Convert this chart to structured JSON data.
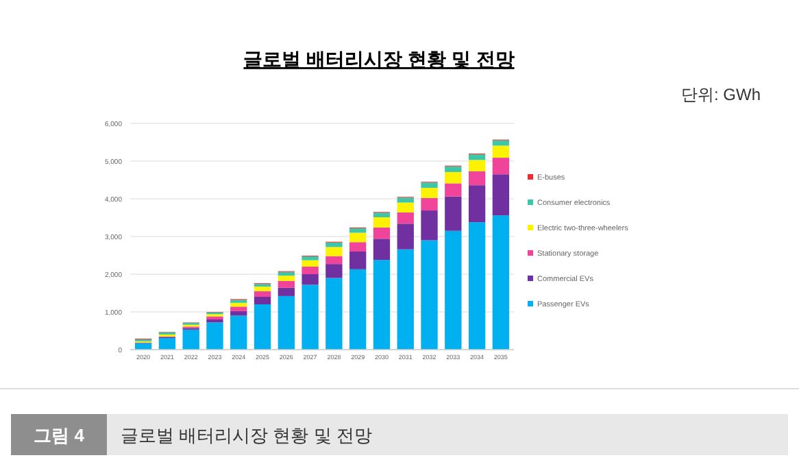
{
  "chart_data": {
    "type": "bar",
    "title": "글로벌 배터리시장 현황 및 전망",
    "annotations": [
      "단위: GWh",
      "그림 4",
      "글로벌 배터리시장 현황 및 전망"
    ],
    "categories": [
      "2020",
      "2021",
      "2022",
      "2023",
      "2024",
      "2025",
      "2026",
      "2027",
      "2028",
      "2029",
      "2030",
      "2031",
      "2032",
      "2033",
      "2034",
      "2035"
    ],
    "stacked": true,
    "legend": "right",
    "grid": "y",
    "ylim": [
      0,
      6000
    ],
    "yticks": [
      0,
      {
        "value": 1000,
        "label": "1,000"
      },
      {
        "value": 2000,
        "label": "2,000"
      },
      {
        "value": 3000,
        "label": "3,000"
      },
      {
        "value": 4000,
        "label": "4,000"
      },
      {
        "value": 5000,
        "label": "5,000"
      },
      {
        "value": 6000,
        "label": "6,000"
      }
    ],
    "series": [
      {
        "name": "Passenger EVs",
        "color": "#00b0f0",
        "values": [
          170,
          310,
          530,
          720,
          900,
          1200,
          1420,
          1720,
          1900,
          2130,
          2380,
          2660,
          2900,
          3150,
          3380,
          3560
        ]
      },
      {
        "name": "Commercial EVs",
        "color": "#7030a0",
        "values": [
          10,
          20,
          40,
          80,
          120,
          200,
          220,
          280,
          370,
          470,
          560,
          680,
          790,
          910,
          980,
          1090
        ]
      },
      {
        "name": "Stationary storage",
        "color": "#f0449a",
        "values": [
          10,
          20,
          40,
          80,
          120,
          150,
          180,
          200,
          210,
          250,
          300,
          300,
          330,
          350,
          370,
          440
        ]
      },
      {
        "name": "Electric two-three-wheelers",
        "color": "#fff200",
        "values": [
          30,
          50,
          50,
          60,
          100,
          120,
          140,
          170,
          240,
          250,
          270,
          260,
          270,
          300,
          300,
          320
        ]
      },
      {
        "name": "Consumer electronics",
        "color": "#3cc7a8",
        "values": [
          50,
          60,
          50,
          50,
          80,
          70,
          100,
          100,
          120,
          120,
          120,
          130,
          140,
          150,
          150,
          140
        ]
      },
      {
        "name": "E-buses",
        "color": "#e8302e",
        "values": [
          20,
          10,
          10,
          10,
          20,
          20,
          20,
          20,
          20,
          20,
          20,
          20,
          20,
          20,
          20,
          20
        ]
      }
    ]
  }
}
